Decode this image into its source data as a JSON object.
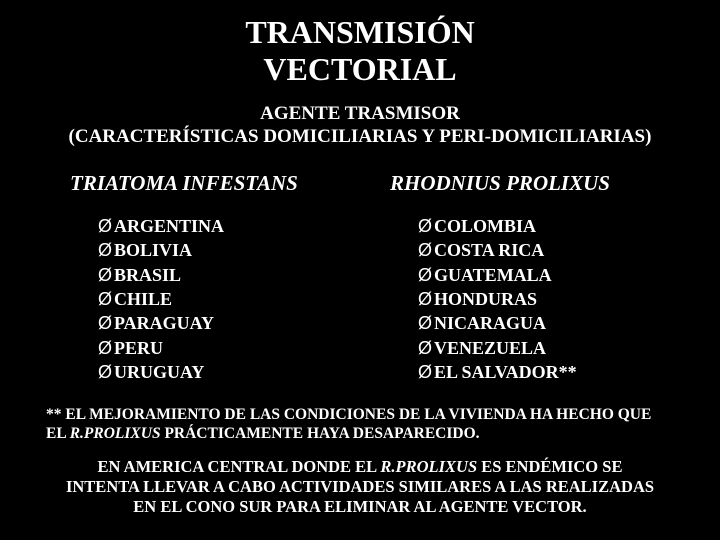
{
  "title_line1": "TRANSMISIÓN",
  "title_line2": "VECTORIAL",
  "subtitle_line1": "AGENTE TRASMISOR",
  "subtitle_line2": "(CARACTERÍSTICAS DOMICILIARIAS Y  PERI-DOMICILIARIAS)",
  "left": {
    "heading": "TRIATOMA INFESTANS",
    "items": [
      "ARGENTINA",
      "BOLIVIA",
      "BRASIL",
      "CHILE",
      "PARAGUAY",
      "PERU",
      "URUGUAY"
    ]
  },
  "right": {
    "heading": "RHODNIUS PROLIXUS",
    "items": [
      "COLOMBIA",
      "COSTA RICA",
      "GUATEMALA",
      "HONDURAS",
      "NICARAGUA",
      "VENEZUELA",
      "EL SALVADOR**"
    ]
  },
  "footnote_pre": "** EL MEJORAMIENTO DE LAS CONDICIONES DE LA VIVIENDA HA HECHO QUE EL ",
  "footnote_italic": "R.PROLIXUS",
  "footnote_post": " PRÁCTICAMENTE HAYA DESAPARECIDO.",
  "closing_pre": "EN AMERICA CENTRAL DONDE EL ",
  "closing_italic": "R.PROLIXUS",
  "closing_post": " ES ENDÉMICO SE INTENTA LLEVAR A CABO ACTIVIDADES SIMILARES A LAS REALIZADAS EN EL CONO SUR PARA ELIMINAR AL AGENTE VECTOR.",
  "bullet_glyph": "Ø",
  "colors": {
    "background": "#000000",
    "text": "#ffffff"
  }
}
